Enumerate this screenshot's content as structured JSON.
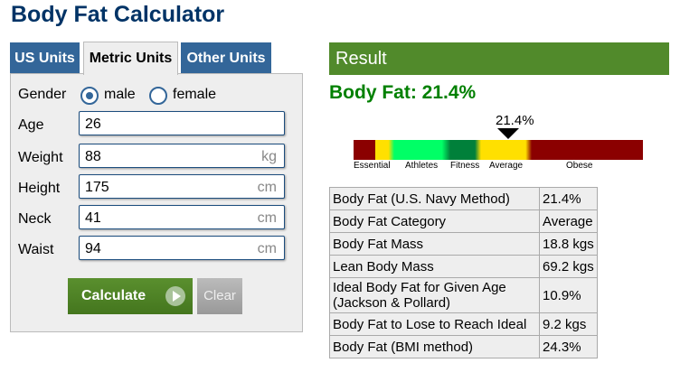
{
  "title": "Body Fat Calculator",
  "tabs": [
    {
      "label": "US Units"
    },
    {
      "label": "Metric Units",
      "active": true
    },
    {
      "label": "Other Units"
    }
  ],
  "form": {
    "gender_label": "Gender",
    "male": "male",
    "female": "female",
    "gender_selected": "male",
    "fields": [
      {
        "label": "Age",
        "value": "26",
        "unit": ""
      },
      {
        "label": "Weight",
        "value": "88",
        "unit": "kg"
      },
      {
        "label": "Height",
        "value": "175",
        "unit": "cm"
      },
      {
        "label": "Neck",
        "value": "41",
        "unit": "cm"
      },
      {
        "label": "Waist",
        "value": "94",
        "unit": "cm"
      }
    ],
    "calculate": "Calculate",
    "clear": "Clear"
  },
  "result": {
    "header": "Result",
    "body_fat": "Body Fat: 21.4%",
    "marker": "21.4%",
    "scale_labels": [
      "Essential",
      "Athletes",
      "Fitness",
      "Average",
      "Obese"
    ],
    "colors": {
      "essential": "#8b0000",
      "yellow": "#ffe000",
      "athletes": "#00ff66",
      "fitness": "#00803a",
      "obese": "#8b0000"
    },
    "rows": [
      [
        "Body Fat (U.S. Navy Method)",
        "21.4%"
      ],
      [
        "Body Fat Category",
        "Average"
      ],
      [
        "Body Fat Mass",
        "18.8 kgs"
      ],
      [
        "Lean Body Mass",
        "69.2 kgs"
      ],
      [
        "Ideal Body Fat for Given Age (Jackson & Pollard)",
        "10.9%"
      ],
      [
        "Body Fat to Lose to Reach Ideal",
        "9.2 kgs"
      ],
      [
        "Body Fat (BMI method)",
        "24.3%"
      ]
    ]
  }
}
